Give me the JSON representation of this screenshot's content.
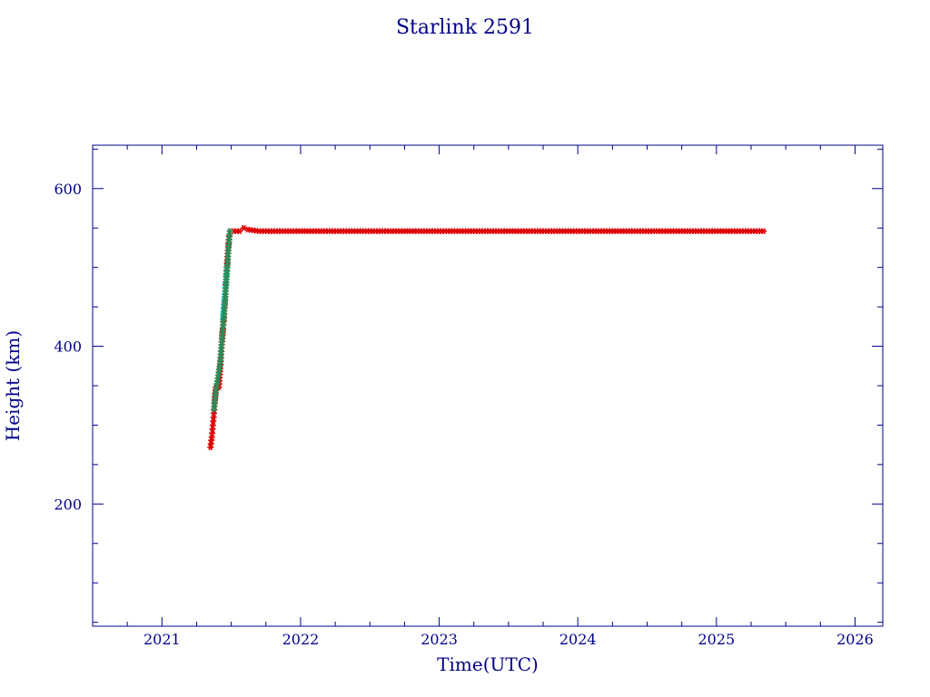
{
  "chart_data": {
    "type": "scatter",
    "title": "Starlink 2591",
    "xlabel": "Time(UTC)",
    "ylabel": "Height (km)",
    "xlim": [
      2020.5,
      2026.2
    ],
    "ylim": [
      45,
      655
    ],
    "x_major_ticks": [
      2021,
      2022,
      2023,
      2024,
      2025,
      2026
    ],
    "x_minor_step": 0.25,
    "y_major_ticks": [
      200,
      400,
      600
    ],
    "y_minor_step": 50,
    "grid": false,
    "legend": "none",
    "colors": {
      "axes": "#00008b",
      "primary_marker": "#dd0000",
      "secondary_marker": "#00e5ee",
      "secondary_marker_alt": "#2e8b57"
    },
    "series": [
      {
        "marker": "asterisk",
        "color": "#dd0000",
        "points": [
          [
            2021.35,
            272
          ],
          [
            2021.36,
            285
          ],
          [
            2021.365,
            295
          ],
          [
            2021.37,
            305
          ],
          [
            2021.375,
            315
          ],
          [
            2021.38,
            328
          ],
          [
            2021.385,
            340
          ],
          [
            2021.39,
            348
          ],
          [
            2021.4,
            350
          ],
          [
            2021.41,
            348
          ],
          [
            2021.415,
            360
          ],
          [
            2021.42,
            372
          ],
          [
            2021.425,
            385
          ],
          [
            2021.43,
            398
          ],
          [
            2021.435,
            410
          ],
          [
            2021.44,
            422
          ],
          [
            2021.445,
            432
          ],
          [
            2021.45,
            445
          ],
          [
            2021.455,
            462
          ],
          [
            2021.46,
            478
          ],
          [
            2021.465,
            492
          ],
          [
            2021.47,
            505
          ],
          [
            2021.475,
            518
          ],
          [
            2021.48,
            530
          ],
          [
            2021.485,
            540
          ],
          [
            2021.49,
            546
          ],
          [
            2021.52,
            546
          ],
          [
            2021.56,
            546
          ],
          [
            2021.59,
            550
          ],
          [
            2021.62,
            548
          ],
          [
            2021.7,
            546
          ],
          [
            2021.8,
            546
          ],
          [
            2021.9,
            546
          ],
          [
            2022.0,
            546
          ],
          [
            2022.1,
            546
          ],
          [
            2022.2,
            546
          ],
          [
            2022.3,
            546
          ],
          [
            2022.4,
            546
          ],
          [
            2022.5,
            546
          ],
          [
            2022.6,
            546
          ],
          [
            2022.7,
            546
          ],
          [
            2022.8,
            546
          ],
          [
            2022.9,
            546
          ],
          [
            2023.0,
            546
          ],
          [
            2023.1,
            546
          ],
          [
            2023.2,
            546
          ],
          [
            2023.3,
            546
          ],
          [
            2023.4,
            546
          ],
          [
            2023.5,
            546
          ],
          [
            2023.6,
            546
          ],
          [
            2023.7,
            546
          ],
          [
            2023.8,
            546
          ],
          [
            2023.9,
            546
          ],
          [
            2024.0,
            546
          ],
          [
            2024.1,
            546
          ],
          [
            2024.2,
            546
          ],
          [
            2024.3,
            546
          ],
          [
            2024.4,
            546
          ],
          [
            2024.5,
            546
          ],
          [
            2024.6,
            546
          ],
          [
            2024.7,
            546
          ],
          [
            2024.8,
            546
          ],
          [
            2024.9,
            546
          ],
          [
            2025.0,
            546
          ],
          [
            2025.1,
            546
          ],
          [
            2025.2,
            546
          ],
          [
            2025.3,
            546
          ],
          [
            2025.34,
            546
          ]
        ]
      },
      {
        "marker": "asterisk",
        "color": "#00e5ee",
        "points": [
          [
            2021.44,
            435
          ],
          [
            2021.445,
            448
          ],
          [
            2021.45,
            458
          ],
          [
            2021.455,
            470
          ],
          [
            2021.46,
            480
          ],
          [
            2021.465,
            490
          ],
          [
            2021.47,
            500
          ]
        ]
      },
      {
        "marker": "asterisk",
        "color": "#2e8b57",
        "points": [
          [
            2021.375,
            320
          ],
          [
            2021.39,
            345
          ],
          [
            2021.42,
            378
          ],
          [
            2021.43,
            402
          ],
          [
            2021.46,
            470
          ],
          [
            2021.48,
            525
          ],
          [
            2021.49,
            546
          ]
        ]
      }
    ]
  }
}
